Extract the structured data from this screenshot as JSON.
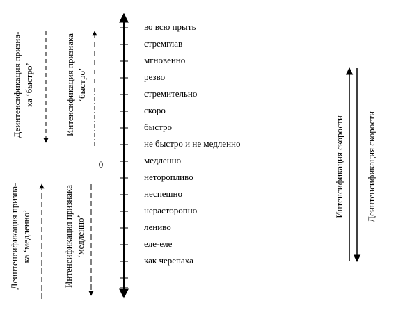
{
  "scale": {
    "zero_label": "0",
    "items": [
      "во всю прыть",
      "стремглав",
      "мгновенно",
      "резво",
      "стремительно",
      "скоро",
      "быстро",
      "не быстро и не медленно",
      "медленно",
      "неторопливо",
      "неспешно",
      "нерасторопно",
      "лениво",
      "еле-еле",
      "как черепаха"
    ]
  },
  "left_labels": {
    "deintens_fast": [
      "Деинтенсификация призна-",
      "ка ‘быстро’"
    ],
    "intens_fast": [
      "Интенсификация признака",
      "‘быстро’"
    ],
    "deintens_slow": [
      "Деинтенсификация призна-",
      "ка ‘медленно’"
    ],
    "intens_slow": [
      "Интенсификация признака",
      "‘медленно’"
    ]
  },
  "right_labels": {
    "intens_speed": "Интенсификация скорости",
    "deintens_speed": "Деинтенсификация скорости"
  }
}
